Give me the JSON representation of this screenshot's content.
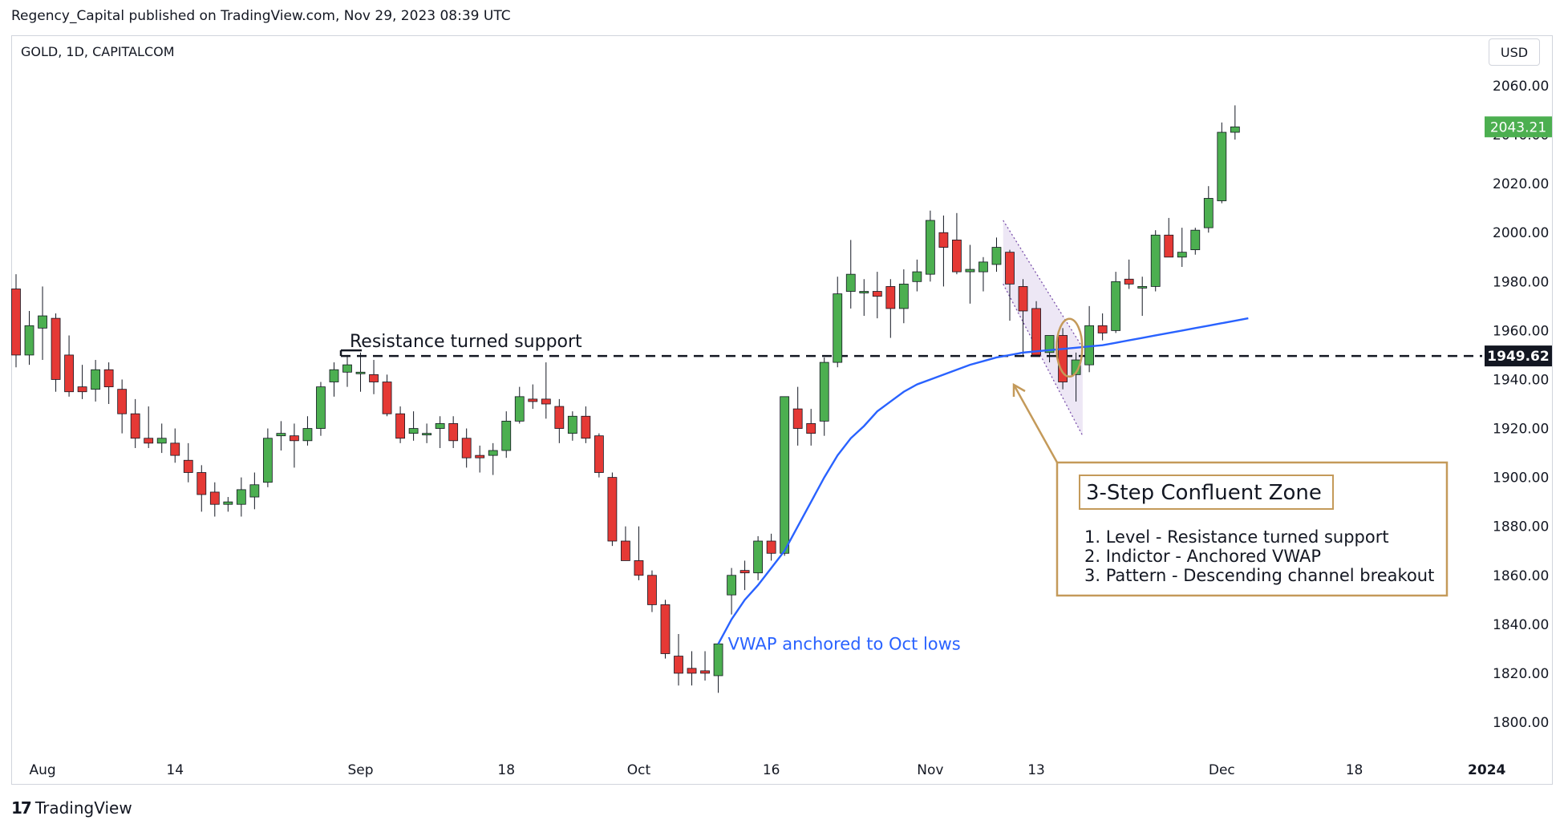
{
  "header": {
    "published": "Regency_Capital published on TradingView.com, Nov 29, 2023 08:39 UTC"
  },
  "symbol_label": "GOLD, 1D, CAPITALCOM",
  "currency_button": "USD",
  "footer": {
    "brand": "TradingView",
    "logo_glyph": "17"
  },
  "colors": {
    "up": "#4caf50",
    "down": "#e53935",
    "vwap": "#2962ff",
    "annotation_border": "#c49a5a",
    "channel_fill": "#e9e1f3",
    "channel_line": "#7b52ab",
    "last_price_bg": "#4caf50",
    "level_bg": "#131722"
  },
  "chart_data": {
    "type": "candlestick",
    "symbol": "GOLD",
    "timeframe": "1D",
    "y_ticks": [
      1800,
      1820,
      1840,
      1860,
      1880,
      1900,
      1920,
      1940,
      1960,
      1980,
      2000,
      2020,
      2040,
      2060
    ],
    "y_tick_labels": [
      "1800.00",
      "1820.00",
      "1840.00",
      "1860.00",
      "1880.00",
      "1900.00",
      "1920.00",
      "1940.00",
      "1960.00",
      "1980.00",
      "2000.00",
      "2020.00",
      "2040.00",
      "2060.00"
    ],
    "ylim": [
      1790,
      2075
    ],
    "x_ticks": [
      {
        "label": "Aug",
        "bar": 2
      },
      {
        "label": "14",
        "bar": 12
      },
      {
        "label": "Sep",
        "bar": 26
      },
      {
        "label": "18",
        "bar": 37
      },
      {
        "label": "Oct",
        "bar": 47
      },
      {
        "label": "16",
        "bar": 57
      },
      {
        "label": "Nov",
        "bar": 69
      },
      {
        "label": "13",
        "bar": 77
      },
      {
        "label": "Dec",
        "bar": 91
      },
      {
        "label": "18",
        "bar": 101
      },
      {
        "label": "2024",
        "bar": 111
      }
    ],
    "candles": [
      {
        "o": 1977,
        "h": 1983,
        "l": 1945,
        "c": 1950
      },
      {
        "o": 1950,
        "h": 1968,
        "l": 1946,
        "c": 1962
      },
      {
        "o": 1961,
        "h": 1978,
        "l": 1948,
        "c": 1966
      },
      {
        "o": 1965,
        "h": 1967,
        "l": 1935,
        "c": 1940
      },
      {
        "o": 1950,
        "h": 1958,
        "l": 1933,
        "c": 1935
      },
      {
        "o": 1937,
        "h": 1946,
        "l": 1932,
        "c": 1935
      },
      {
        "o": 1936,
        "h": 1948,
        "l": 1931,
        "c": 1944
      },
      {
        "o": 1944,
        "h": 1947,
        "l": 1930,
        "c": 1937
      },
      {
        "o": 1936,
        "h": 1940,
        "l": 1918,
        "c": 1926
      },
      {
        "o": 1926,
        "h": 1932,
        "l": 1912,
        "c": 1916
      },
      {
        "o": 1916,
        "h": 1929,
        "l": 1912,
        "c": 1914
      },
      {
        "o": 1914,
        "h": 1922,
        "l": 1910,
        "c": 1916
      },
      {
        "o": 1914,
        "h": 1920,
        "l": 1906,
        "c": 1909
      },
      {
        "o": 1907,
        "h": 1914,
        "l": 1898,
        "c": 1902
      },
      {
        "o": 1902,
        "h": 1905,
        "l": 1886,
        "c": 1893
      },
      {
        "o": 1894,
        "h": 1898,
        "l": 1884,
        "c": 1889
      },
      {
        "o": 1889,
        "h": 1892,
        "l": 1886,
        "c": 1890
      },
      {
        "o": 1889,
        "h": 1900,
        "l": 1884,
        "c": 1895
      },
      {
        "o": 1892,
        "h": 1902,
        "l": 1887,
        "c": 1897
      },
      {
        "o": 1898,
        "h": 1920,
        "l": 1896,
        "c": 1916
      },
      {
        "o": 1917,
        "h": 1923,
        "l": 1911,
        "c": 1918
      },
      {
        "o": 1917,
        "h": 1922,
        "l": 1904,
        "c": 1915
      },
      {
        "o": 1915,
        "h": 1925,
        "l": 1913,
        "c": 1920
      },
      {
        "o": 1920,
        "h": 1939,
        "l": 1917,
        "c": 1937
      },
      {
        "o": 1939,
        "h": 1947,
        "l": 1933,
        "c": 1944
      },
      {
        "o": 1943,
        "h": 1950,
        "l": 1937,
        "c": 1946
      },
      {
        "o": 1943,
        "h": 1951,
        "l": 1935,
        "c": 1943
      },
      {
        "o": 1942,
        "h": 1948,
        "l": 1934,
        "c": 1939
      },
      {
        "o": 1939,
        "h": 1942,
        "l": 1925,
        "c": 1926
      },
      {
        "o": 1926,
        "h": 1929,
        "l": 1914,
        "c": 1916
      },
      {
        "o": 1918,
        "h": 1927,
        "l": 1915,
        "c": 1920
      },
      {
        "o": 1918,
        "h": 1922,
        "l": 1914,
        "c": 1918
      },
      {
        "o": 1920,
        "h": 1925,
        "l": 1912,
        "c": 1922
      },
      {
        "o": 1922,
        "h": 1925,
        "l": 1912,
        "c": 1915
      },
      {
        "o": 1916,
        "h": 1920,
        "l": 1904,
        "c": 1908
      },
      {
        "o": 1909,
        "h": 1913,
        "l": 1902,
        "c": 1908
      },
      {
        "o": 1909,
        "h": 1914,
        "l": 1901,
        "c": 1911
      },
      {
        "o": 1911,
        "h": 1927,
        "l": 1908,
        "c": 1923
      },
      {
        "o": 1923,
        "h": 1937,
        "l": 1922,
        "c": 1933
      },
      {
        "o": 1932,
        "h": 1938,
        "l": 1928,
        "c": 1931
      },
      {
        "o": 1932,
        "h": 1947,
        "l": 1924,
        "c": 1930
      },
      {
        "o": 1929,
        "h": 1932,
        "l": 1914,
        "c": 1920
      },
      {
        "o": 1918,
        "h": 1927,
        "l": 1915,
        "c": 1925
      },
      {
        "o": 1925,
        "h": 1929,
        "l": 1914,
        "c": 1916
      },
      {
        "o": 1917,
        "h": 1918,
        "l": 1900,
        "c": 1902
      },
      {
        "o": 1900,
        "h": 1902,
        "l": 1872,
        "c": 1874
      },
      {
        "o": 1874,
        "h": 1880,
        "l": 1866,
        "c": 1866
      },
      {
        "o": 1866,
        "h": 1880,
        "l": 1858,
        "c": 1860
      },
      {
        "o": 1860,
        "h": 1862,
        "l": 1845,
        "c": 1848
      },
      {
        "o": 1848,
        "h": 1850,
        "l": 1826,
        "c": 1828
      },
      {
        "o": 1827,
        "h": 1836,
        "l": 1815,
        "c": 1820
      },
      {
        "o": 1822,
        "h": 1829,
        "l": 1815,
        "c": 1820
      },
      {
        "o": 1821,
        "h": 1829,
        "l": 1817,
        "c": 1820
      },
      {
        "o": 1819,
        "h": 1832,
        "l": 1812,
        "c": 1832
      },
      {
        "o": 1852,
        "h": 1863,
        "l": 1844,
        "c": 1860
      },
      {
        "o": 1862,
        "h": 1866,
        "l": 1854,
        "c": 1861
      },
      {
        "o": 1861,
        "h": 1876,
        "l": 1858,
        "c": 1874
      },
      {
        "o": 1874,
        "h": 1877,
        "l": 1866,
        "c": 1869
      },
      {
        "o": 1869,
        "h": 1933,
        "l": 1868,
        "c": 1933
      },
      {
        "o": 1928,
        "h": 1937,
        "l": 1913,
        "c": 1920
      },
      {
        "o": 1922,
        "h": 1928,
        "l": 1913,
        "c": 1918
      },
      {
        "o": 1923,
        "h": 1949,
        "l": 1917,
        "c": 1947
      },
      {
        "o": 1947,
        "h": 1982,
        "l": 1945,
        "c": 1975
      },
      {
        "o": 1976,
        "h": 1997,
        "l": 1969,
        "c": 1983
      },
      {
        "o": 1976,
        "h": 1981,
        "l": 1966,
        "c": 1976
      },
      {
        "o": 1976,
        "h": 1984,
        "l": 1965,
        "c": 1974
      },
      {
        "o": 1978,
        "h": 1981,
        "l": 1957,
        "c": 1969
      },
      {
        "o": 1969,
        "h": 1985,
        "l": 1963,
        "c": 1979
      },
      {
        "o": 1980,
        "h": 1989,
        "l": 1976,
        "c": 1984
      },
      {
        "o": 1983,
        "h": 2009,
        "l": 1980,
        "c": 2005
      },
      {
        "o": 2000,
        "h": 2007,
        "l": 1978,
        "c": 1994
      },
      {
        "o": 1997,
        "h": 2008,
        "l": 1983,
        "c": 1984
      },
      {
        "o": 1984,
        "h": 1995,
        "l": 1971,
        "c": 1985
      },
      {
        "o": 1984,
        "h": 1990,
        "l": 1976,
        "c": 1988
      },
      {
        "o": 1987,
        "h": 1998,
        "l": 1984,
        "c": 1994
      },
      {
        "o": 1992,
        "h": 1993,
        "l": 1964,
        "c": 1979
      },
      {
        "o": 1978,
        "h": 1981,
        "l": 1950,
        "c": 1968
      },
      {
        "o": 1969,
        "h": 1972,
        "l": 1952,
        "c": 1950
      },
      {
        "o": 1951,
        "h": 1958,
        "l": 1947,
        "c": 1958
      },
      {
        "o": 1958,
        "h": 1961,
        "l": 1936,
        "c": 1939
      },
      {
        "o": 1942,
        "h": 1951,
        "l": 1931,
        "c": 1948
      },
      {
        "o": 1946,
        "h": 1970,
        "l": 1943,
        "c": 1962
      },
      {
        "o": 1962,
        "h": 1967,
        "l": 1956,
        "c": 1959
      },
      {
        "o": 1960,
        "h": 1984,
        "l": 1959,
        "c": 1980
      },
      {
        "o": 1981,
        "h": 1989,
        "l": 1977,
        "c": 1979
      },
      {
        "o": 1978,
        "h": 1982,
        "l": 1966,
        "c": 1978
      },
      {
        "o": 1978,
        "h": 2001,
        "l": 1976,
        "c": 1999
      },
      {
        "o": 1999,
        "h": 2006,
        "l": 1990,
        "c": 1990
      },
      {
        "o": 1990,
        "h": 2002,
        "l": 1986,
        "c": 1992
      },
      {
        "o": 1993,
        "h": 2002,
        "l": 1991,
        "c": 2001
      },
      {
        "o": 2002,
        "h": 2019,
        "l": 2000,
        "c": 2014
      },
      {
        "o": 2013,
        "h": 2045,
        "l": 2012,
        "c": 2041
      },
      {
        "o": 2041,
        "h": 2052,
        "l": 2038,
        "c": 2043.21
      }
    ],
    "vwap": {
      "name": "VWAP anchored to Oct lows",
      "start_bar": 53,
      "values": [
        1832,
        1842,
        1850,
        1856,
        1863,
        1870,
        1880,
        1890,
        1900,
        1909,
        1916,
        1921,
        1927,
        1931,
        1935,
        1938,
        1940,
        1942,
        1944,
        1946,
        1947.5,
        1949,
        1950,
        1951,
        1951.5,
        1952,
        1952.5,
        1953,
        1953.5,
        1954,
        1955,
        1956,
        1957,
        1958,
        1959,
        1960,
        1961,
        1962,
        1963,
        1964,
        1965
      ]
    },
    "support_level": {
      "value": 1949.62,
      "label": "Resistance turned support",
      "start_bar": 25
    },
    "last_price": {
      "value": 2043.21,
      "label": "2043.21"
    },
    "level_label": "1949.62",
    "descending_channel": {
      "start_bar": 74.5,
      "end_bar": 80.5,
      "upper": [
        2005,
        1953
      ],
      "lower": [
        1979,
        1917
      ]
    },
    "annotations": {
      "vwap_label": "VWAP anchored to Oct lows",
      "zone_title": "3-Step Confluent Zone",
      "zone_items": [
        "1. Level - Resistance turned support",
        "2. Indictor - Anchored VWAP",
        "3. Pattern - Descending channel breakout"
      ]
    }
  }
}
